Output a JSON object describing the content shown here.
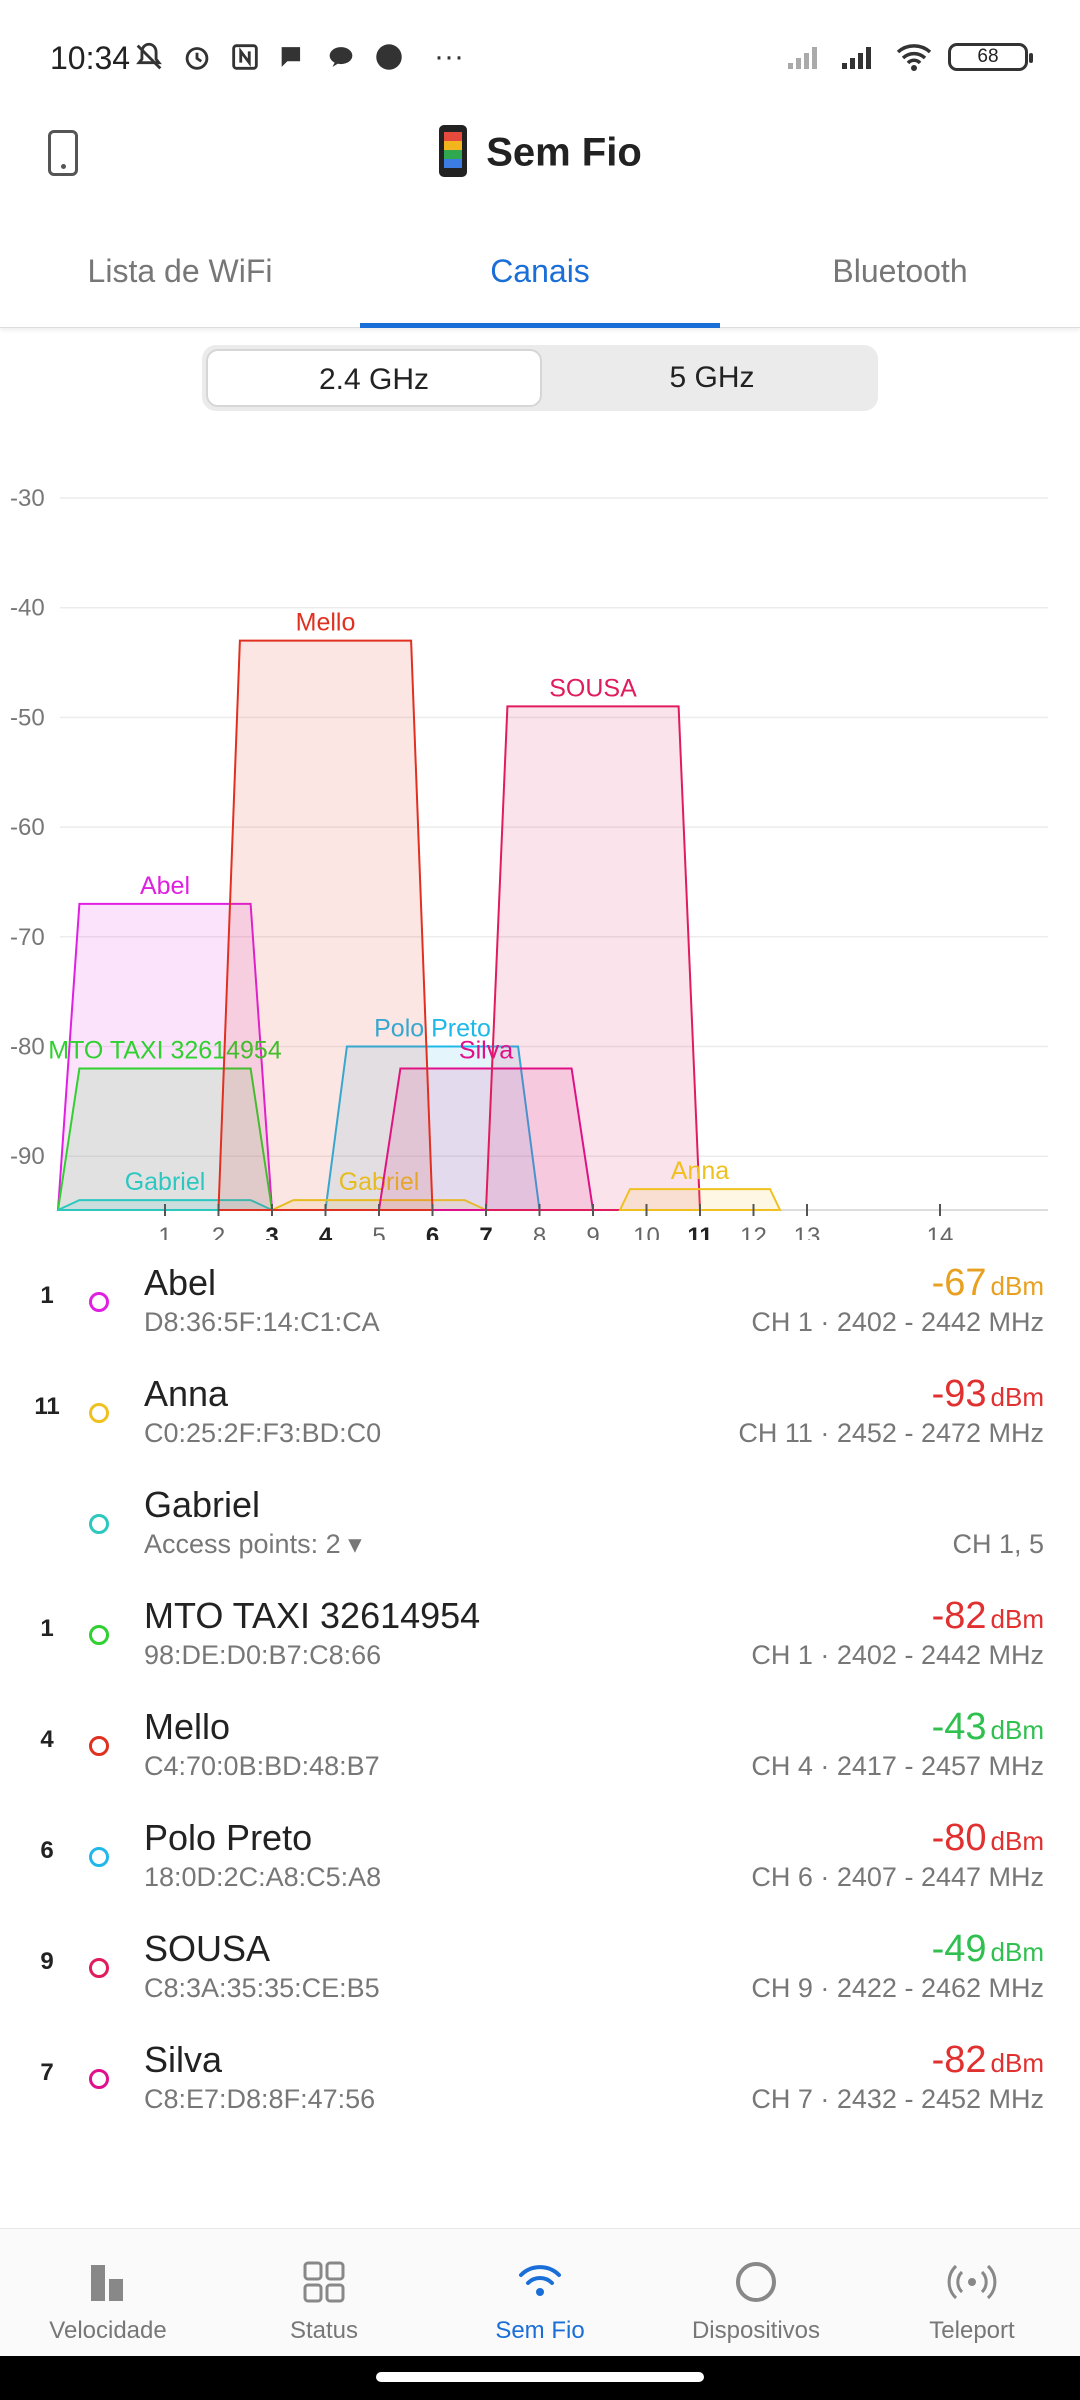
{
  "status_bar": {
    "time": "10:34",
    "battery": "68"
  },
  "app": {
    "title": "Sem Fio"
  },
  "tabs": [
    {
      "label": "Lista de WiFi"
    },
    {
      "label": "Canais",
      "active": true
    },
    {
      "label": "Bluetooth"
    }
  ],
  "band_selector": {
    "options": [
      "2.4 GHz",
      "5 GHz"
    ],
    "selected": "2.4 GHz"
  },
  "chart_data": {
    "type": "area",
    "y_ticks": [
      "-30",
      "-40",
      "-50",
      "-60",
      "-70",
      "-80",
      "-90"
    ],
    "ylim": [
      -95,
      -28
    ],
    "x_ticks": [
      "1",
      "2",
      "3",
      "4",
      "5",
      "6",
      "7",
      "8",
      "9",
      "10",
      "11",
      "12",
      "13",
      "14"
    ],
    "bold_ticks": [
      "3",
      "4",
      "6",
      "7",
      "11"
    ],
    "series": [
      {
        "name": "Abel",
        "channel": 1,
        "dbm": -67,
        "color": "#e020e0"
      },
      {
        "name": "MTO TAXI 32614954",
        "channel": 1,
        "dbm": -82,
        "color": "#30d030"
      },
      {
        "name": "Polo Preto",
        "channel": 6,
        "dbm": -80,
        "color": "#20b8e8"
      },
      {
        "name": "Gabriel",
        "channel": 1,
        "dbm": -94,
        "color": "#2cc8c0"
      },
      {
        "name": "Gabriel",
        "channel": 5,
        "dbm": -94,
        "color": "#e8d020"
      },
      {
        "name": "Silva",
        "channel": 7,
        "dbm": -82,
        "color": "#e0108c"
      },
      {
        "name": "Mello",
        "channel": 4,
        "dbm": -43,
        "color": "#e03020"
      },
      {
        "name": "SOUSA",
        "channel": 9,
        "dbm": -49,
        "color": "#e01c5c"
      },
      {
        "name": "Anna",
        "channel": 11,
        "dbm": -93,
        "color": "#f0c020"
      }
    ]
  },
  "networks": [
    {
      "channel": "1",
      "name": "Abel",
      "mac": "D8:36:5F:14:C1:CA",
      "signal": "-67",
      "unit": "dBm",
      "freq": "CH 1 · 2402 - 2442 MHz",
      "dot_color": "#e020e0",
      "signal_color": "#e8a020"
    },
    {
      "channel": "11",
      "name": "Anna",
      "mac": "C0:25:2F:F3:BD:C0",
      "signal": "-93",
      "unit": "dBm",
      "freq": "CH 11 · 2452 - 2472 MHz",
      "dot_color": "#f0c020",
      "signal_color": "#e03030"
    },
    {
      "channel": "",
      "name": "Gabriel",
      "mac": "Access points: 2 ▾",
      "signal": "",
      "unit": "",
      "freq": "CH 1, 5",
      "dot_color": "#2cc8c0",
      "signal_color": "#777777"
    },
    {
      "channel": "1",
      "name": "MTO TAXI 32614954",
      "mac": "98:DE:D0:B7:C8:66",
      "signal": "-82",
      "unit": "dBm",
      "freq": "CH 1 · 2402 - 2442 MHz",
      "dot_color": "#30d030",
      "signal_color": "#e03030"
    },
    {
      "channel": "4",
      "name": "Mello",
      "mac": "C4:70:0B:BD:48:B7",
      "signal": "-43",
      "unit": "dBm",
      "freq": "CH 4 · 2417 - 2457 MHz",
      "dot_color": "#e03020",
      "signal_color": "#30c050"
    },
    {
      "channel": "6",
      "name": "Polo Preto",
      "mac": "18:0D:2C:A8:C5:A8",
      "signal": "-80",
      "unit": "dBm",
      "freq": "CH 6 · 2407 - 2447 MHz",
      "dot_color": "#20b8e8",
      "signal_color": "#e03030"
    },
    {
      "channel": "9",
      "name": "SOUSA",
      "mac": "C8:3A:35:35:CE:B5",
      "signal": "-49",
      "unit": "dBm",
      "freq": "CH 9 · 2422 - 2462 MHz",
      "dot_color": "#e01c5c",
      "signal_color": "#30c050"
    },
    {
      "channel": "7",
      "name": "Silva",
      "mac": "C8:E7:D8:8F:47:56",
      "signal": "-82",
      "unit": "dBm",
      "freq": "CH 7 · 2432 - 2452 MHz",
      "dot_color": "#e0108c",
      "signal_color": "#e03030"
    }
  ],
  "bottom_nav": [
    {
      "label": "Velocidade",
      "icon": "bar-chart-icon"
    },
    {
      "label": "Status",
      "icon": "grid-icon"
    },
    {
      "label": "Sem Fio",
      "icon": "wifi-icon",
      "active": true
    },
    {
      "label": "Dispositivos",
      "icon": "circle-icon"
    },
    {
      "label": "Teleport",
      "icon": "teleport-icon"
    }
  ]
}
